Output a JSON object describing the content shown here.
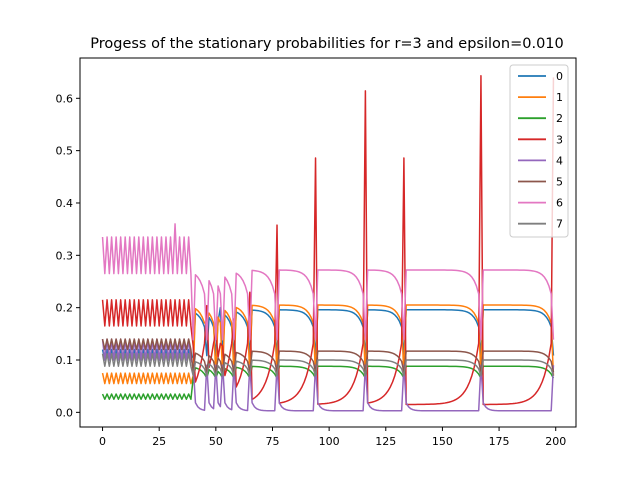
{
  "chart_data": {
    "type": "line",
    "title": "Progess of the stationary probabilities for r=3 and epsilon=0.010",
    "xlabel": "",
    "ylabel": "",
    "xlim": [
      -9.95,
      208.95
    ],
    "ylim": [
      -0.028,
      0.677
    ],
    "grid": false,
    "legend_position": "top-right",
    "x_ticks": [
      0,
      25,
      50,
      75,
      100,
      125,
      150,
      175,
      200
    ],
    "y_ticks": [
      0.0,
      0.1,
      0.2,
      0.3,
      0.4,
      0.5,
      0.6
    ],
    "x_range": [
      0,
      199
    ],
    "spike_times": [
      37,
      40,
      46,
      50,
      53,
      58,
      65,
      77,
      94,
      116,
      133,
      167,
      199
    ],
    "series": [
      {
        "name": "0",
        "color": "#1f77b4",
        "early_level": 0.11,
        "early_amplitude": 0.01,
        "plateau_level": 0.196,
        "peak_time": 52,
        "peak_value": 0.2
      },
      {
        "name": "1",
        "color": "#ff7f0e",
        "early_level": 0.065,
        "early_amplitude": 0.01,
        "plateau_level": 0.205,
        "peak_time": 46,
        "peak_value": 0.17
      },
      {
        "name": "2",
        "color": "#2ca02c",
        "early_level": 0.03,
        "early_amplitude": 0.005,
        "plateau_level": 0.088,
        "peak_time": null,
        "peak_value": null
      },
      {
        "name": "3",
        "color": "#d62728",
        "early_level": 0.19,
        "early_amplitude": 0.025,
        "plateau_level": 0.015,
        "peak_time": 167,
        "peak_value": 0.643
      },
      {
        "name": "4",
        "color": "#9467bd",
        "early_level": 0.12,
        "early_amplitude": 0.02,
        "plateau_level": 0.003,
        "peak_time": null,
        "peak_value": null
      },
      {
        "name": "5",
        "color": "#8c564b",
        "early_level": 0.13,
        "early_amplitude": 0.01,
        "plateau_level": 0.117,
        "peak_time": null,
        "peak_value": null
      },
      {
        "name": "6",
        "color": "#e377c2",
        "early_level": 0.3,
        "early_amplitude": 0.035,
        "plateau_level": 0.272,
        "peak_time": 32,
        "peak_value": 0.36
      },
      {
        "name": "7",
        "color": "#7f7f7f",
        "early_level": 0.1,
        "early_amplitude": 0.012,
        "plateau_level": 0.1,
        "peak_time": null,
        "peak_value": null
      }
    ]
  }
}
